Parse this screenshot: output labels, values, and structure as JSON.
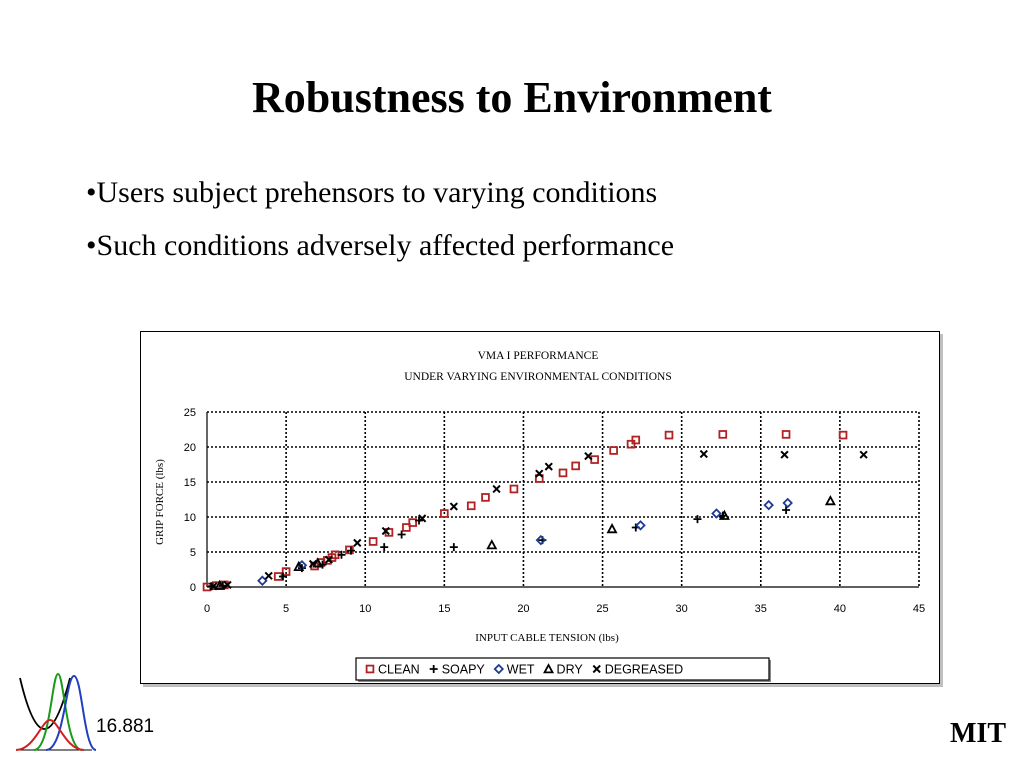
{
  "slide": {
    "title": "Robustness to Environment",
    "bullets": [
      "•Users subject prehensors to varying conditions",
      "•Such conditions adversely affected performance"
    ]
  },
  "footer": {
    "course_number": "16.881",
    "institution": "MIT",
    "logo_icon": "gaussian-curves-logo-icon"
  },
  "chart_data": {
    "type": "scatter",
    "title": "VMA I PERFORMANCE",
    "subtitle": "UNDER VARYING ENVIRONMENTAL CONDITIONS",
    "xlabel": "INPUT CABLE TENSION (lbs)",
    "ylabel": "GRIP FORCE (lbs)",
    "xlim": [
      0,
      45
    ],
    "ylim": [
      0,
      25
    ],
    "x_ticks": [
      0,
      5,
      10,
      15,
      20,
      25,
      30,
      35,
      40,
      45
    ],
    "y_ticks": [
      0,
      5,
      10,
      15,
      20,
      25
    ],
    "grid": true,
    "legend_position": "bottom",
    "series": [
      {
        "name": "CLEAN",
        "marker": "square",
        "color": "#b22222",
        "points": [
          [
            0,
            0
          ],
          [
            0.6,
            0.2
          ],
          [
            1.1,
            0.3
          ],
          [
            4.5,
            1.5
          ],
          [
            5,
            2.2
          ],
          [
            6.8,
            3
          ],
          [
            7.2,
            3.5
          ],
          [
            7.6,
            3.8
          ],
          [
            7.9,
            4.2
          ],
          [
            8.1,
            4.6
          ],
          [
            9,
            5.3
          ],
          [
            10.5,
            6.5
          ],
          [
            11.5,
            7.8
          ],
          [
            12.6,
            8.5
          ],
          [
            13,
            9.2
          ],
          [
            15,
            10.5
          ],
          [
            16.7,
            11.6
          ],
          [
            17.6,
            12.8
          ],
          [
            19.4,
            14
          ],
          [
            21,
            15.5
          ],
          [
            22.5,
            16.3
          ],
          [
            23.3,
            17.3
          ],
          [
            24.5,
            18.2
          ],
          [
            25.7,
            19.5
          ],
          [
            26.8,
            20.4
          ],
          [
            27.1,
            21
          ],
          [
            29.2,
            21.7
          ],
          [
            32.6,
            21.8
          ],
          [
            36.6,
            21.8
          ],
          [
            40.2,
            21.7
          ]
        ]
      },
      {
        "name": "SOAPY",
        "marker": "plus",
        "color": "#000000",
        "points": [
          [
            0.3,
            0.1
          ],
          [
            1,
            0.2
          ],
          [
            4.8,
            1.5
          ],
          [
            6,
            2.7
          ],
          [
            7.3,
            3.2
          ],
          [
            8.5,
            4.6
          ],
          [
            9.1,
            5.2
          ],
          [
            11.2,
            5.7
          ],
          [
            12.3,
            7.5
          ],
          [
            13.4,
            9.5
          ],
          [
            15.6,
            5.7
          ],
          [
            21.2,
            6.7
          ],
          [
            27.1,
            8.5
          ],
          [
            31,
            9.7
          ],
          [
            32.6,
            10.2
          ],
          [
            36.6,
            11
          ]
        ]
      },
      {
        "name": "WET",
        "marker": "diamond",
        "color": "#1f3a93",
        "points": [
          [
            3.5,
            0.9
          ],
          [
            6,
            3.1
          ],
          [
            21.1,
            6.7
          ],
          [
            27.4,
            8.8
          ],
          [
            32.2,
            10.5
          ],
          [
            35.5,
            11.7
          ],
          [
            36.7,
            12
          ]
        ]
      },
      {
        "name": "DRY",
        "marker": "triangle",
        "color": "#000000",
        "points": [
          [
            0.8,
            0.2
          ],
          [
            5.8,
            2.9
          ],
          [
            7,
            3.4
          ],
          [
            18,
            6
          ],
          [
            25.6,
            8.3
          ],
          [
            32.7,
            10.2
          ],
          [
            39.4,
            12.3
          ]
        ]
      },
      {
        "name": "DEGREASED",
        "marker": "cross",
        "color": "#000000",
        "points": [
          [
            0.4,
            0.1
          ],
          [
            1.3,
            0.3
          ],
          [
            3.9,
            1.6
          ],
          [
            6.7,
            3.3
          ],
          [
            7.7,
            3.9
          ],
          [
            9.5,
            6.3
          ],
          [
            11.3,
            8
          ],
          [
            13.6,
            9.8
          ],
          [
            15.6,
            11.5
          ],
          [
            18.3,
            14
          ],
          [
            21,
            16.2
          ],
          [
            21.6,
            17.2
          ],
          [
            24.1,
            18.7
          ],
          [
            31.4,
            19
          ],
          [
            36.5,
            18.9
          ],
          [
            41.5,
            18.9
          ]
        ]
      }
    ]
  }
}
